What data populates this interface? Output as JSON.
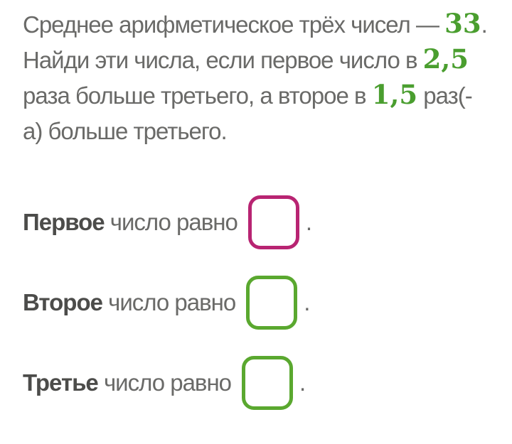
{
  "problem": {
    "line1": {
      "text_before": "Среднее арифметическое трёх чисел — ",
      "number": "33",
      "text_after": "."
    },
    "line2": {
      "text_before": "Найди эти числа, если первое число в ",
      "number": "2,5",
      "text_after": ""
    },
    "line3": {
      "text_before": "раза больше третьего, а второе в ",
      "number": "1,5",
      "text_after": " раз(-"
    },
    "line4": {
      "text_before": "а) больше третьего.",
      "number": "",
      "text_after": ""
    }
  },
  "answers": [
    {
      "label_bold": "Первое",
      "label_rest": " число равно",
      "value": "",
      "period": ".",
      "border_color": "#b82472"
    },
    {
      "label_bold": "Второе",
      "label_rest": " число равно",
      "value": "",
      "period": ".",
      "border_color": "#5aa82f"
    },
    {
      "label_bold": "Третье",
      "label_rest": " число равно",
      "value": "",
      "period": ".",
      "border_color": "#5aa82f"
    }
  ],
  "colors": {
    "background": "#ffffff",
    "text_gray": "#6a6a68",
    "label_bold_gray": "#4c4c4a",
    "number_green": "#4a9e2f",
    "box_green": "#5aa82f",
    "box_magenta": "#b82472"
  }
}
